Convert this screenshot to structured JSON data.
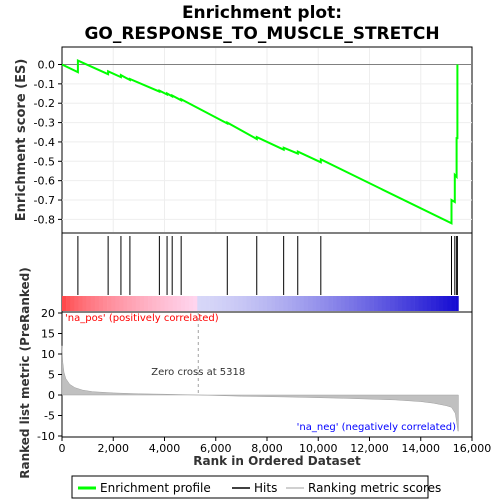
{
  "chart_data": {
    "type": "line",
    "title": "Enrichment plot:",
    "subtitle": "GO_RESPONSE_TO_MUSCLE_STRETCH",
    "es_panel": {
      "ylabel": "Enrichment score (ES)",
      "ylim": [
        -0.86,
        0.08
      ],
      "yticks": [
        "0.0",
        "-0.1",
        "-0.2",
        "-0.3",
        "-0.4",
        "-0.5",
        "-0.6",
        "-0.7",
        "-0.8"
      ],
      "ytick_values": [
        0.0,
        -0.1,
        -0.2,
        -0.3,
        -0.4,
        -0.5,
        -0.6,
        -0.7,
        -0.8
      ],
      "series": [
        {
          "name": "Enrichment profile",
          "color": "#00ff00",
          "x": [
            0,
            620,
            620,
            1800,
            1800,
            2300,
            2300,
            2650,
            2650,
            3800,
            3800,
            4100,
            4100,
            4300,
            4300,
            4650,
            4650,
            6450,
            6450,
            7600,
            7600,
            8650,
            8650,
            9200,
            9200,
            10100,
            10100,
            15200,
            15200,
            15330,
            15330,
            15400,
            15400,
            15430,
            15430
          ],
          "y": [
            0.0,
            -0.04,
            0.02,
            -0.05,
            -0.035,
            -0.065,
            -0.055,
            -0.08,
            -0.075,
            -0.14,
            -0.135,
            -0.155,
            -0.15,
            -0.165,
            -0.16,
            -0.185,
            -0.18,
            -0.305,
            -0.3,
            -0.385,
            -0.375,
            -0.44,
            -0.43,
            -0.46,
            -0.45,
            -0.505,
            -0.49,
            -0.82,
            -0.7,
            -0.71,
            -0.57,
            -0.58,
            -0.38,
            -0.38,
            0.0
          ]
        }
      ]
    },
    "hits": {
      "name": "Hits",
      "positions": [
        620,
        1800,
        2300,
        2650,
        3800,
        4100,
        4300,
        4650,
        6450,
        7600,
        8650,
        9200,
        10100,
        15200,
        15330,
        15400,
        15430
      ]
    },
    "rank_panel": {
      "ylabel": "Ranked list metric (PreRanked)",
      "xlabel": "Rank in Ordered Dataset",
      "xlim": [
        0,
        16000
      ],
      "xticks": [
        "0",
        "2,000",
        "4,000",
        "6,000",
        "8,000",
        "10,000",
        "12,000",
        "14,000",
        "16,000"
      ],
      "xtick_values": [
        0,
        2000,
        4000,
        6000,
        8000,
        10000,
        12000,
        14000,
        16000
      ],
      "ylim": [
        -10,
        20
      ],
      "yticks": [
        "20",
        "15",
        "10",
        "5",
        "0",
        "-5",
        "-10"
      ],
      "ytick_values": [
        20,
        15,
        10,
        5,
        0,
        -5,
        -10
      ],
      "series": [
        {
          "name": "Ranking metric scores",
          "color": "#c0c0c0",
          "x": [
            0,
            30,
            80,
            150,
            300,
            500,
            800,
            1200,
            2000,
            3000,
            4000,
            5318,
            7000,
            9000,
            11000,
            13000,
            14000,
            14500,
            15000,
            15200,
            15350,
            15400,
            15450,
            15470
          ],
          "y": [
            12,
            8,
            5.5,
            4,
            2.6,
            1.8,
            1.2,
            0.8,
            0.5,
            0.3,
            0.2,
            0.0,
            -0.3,
            -0.5,
            -0.8,
            -1.2,
            -1.6,
            -2.0,
            -2.6,
            -3.0,
            -4.5,
            -6.5,
            -8.8,
            -8.8
          ]
        }
      ],
      "zero_cross_label": "Zero cross at 5318",
      "zero_cross": 5318,
      "pos_label": "'na_pos' (positively correlated)",
      "neg_label": "'na_neg' (negatively correlated)",
      "pos_color": "#ff0000",
      "neg_color": "#0000ff"
    },
    "legend": {
      "placement": "bottom",
      "items": [
        {
          "label": "Enrichment profile",
          "color": "#00ff00"
        },
        {
          "label": "Hits",
          "color": "#000000"
        },
        {
          "label": "Ranking metric scores",
          "color": "#c0c0c0"
        }
      ]
    }
  }
}
